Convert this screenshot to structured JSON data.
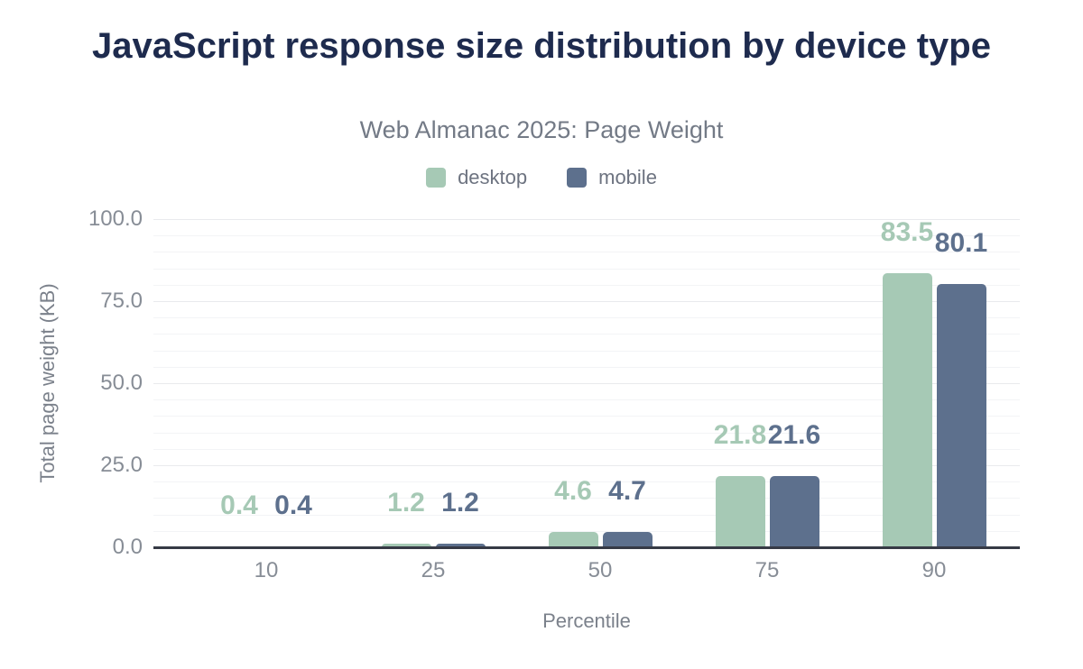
{
  "header": {
    "title": "JavaScript response size distribution by device type",
    "subtitle": "Web Almanac 2025: Page Weight"
  },
  "legend": {
    "items": [
      {
        "label": "desktop",
        "color": "#a6c9b5"
      },
      {
        "label": "mobile",
        "color": "#5d708d"
      }
    ]
  },
  "chart_data": {
    "type": "bar",
    "title": "JavaScript response size distribution by device type",
    "subtitle": "Web Almanac 2025: Page Weight",
    "categories": [
      "10",
      "25",
      "50",
      "75",
      "90"
    ],
    "series": [
      {
        "name": "desktop",
        "color": "#a6c9b5",
        "values": [
          0.4,
          1.2,
          4.6,
          21.8,
          83.5
        ],
        "value_labels": [
          "0.4",
          "1.2",
          "4.6",
          "21.8",
          "83.5"
        ]
      },
      {
        "name": "mobile",
        "color": "#5d708d",
        "values": [
          0.4,
          1.2,
          4.7,
          21.6,
          80.1
        ],
        "value_labels": [
          "0.4",
          "1.2",
          "4.7",
          "21.6",
          "80.1"
        ]
      }
    ],
    "xlabel": "Percentile",
    "ylabel": "Total page weight (KB)",
    "ylim": [
      0,
      100
    ],
    "yticks": [
      {
        "value": 0,
        "label": "0.0"
      },
      {
        "value": 25,
        "label": "25.0"
      },
      {
        "value": 50,
        "label": "50.0"
      },
      {
        "value": 75,
        "label": "75.0"
      },
      {
        "value": 100,
        "label": "100.0"
      }
    ],
    "grid": {
      "show": true,
      "minor_step": 5,
      "major_step": 25
    },
    "legend_position": "top",
    "value_labels_shown": true
  },
  "colors": {
    "title": "#1e2b4e",
    "subtitle": "#737a86",
    "legend_text": "#6d7380",
    "tick_label": "#878d96",
    "axis_title": "#7b818b",
    "axis_line": "#363a45",
    "grid_major": "#e9eaed",
    "grid_minor": "#f3f4f6",
    "background": "#ffffff"
  }
}
